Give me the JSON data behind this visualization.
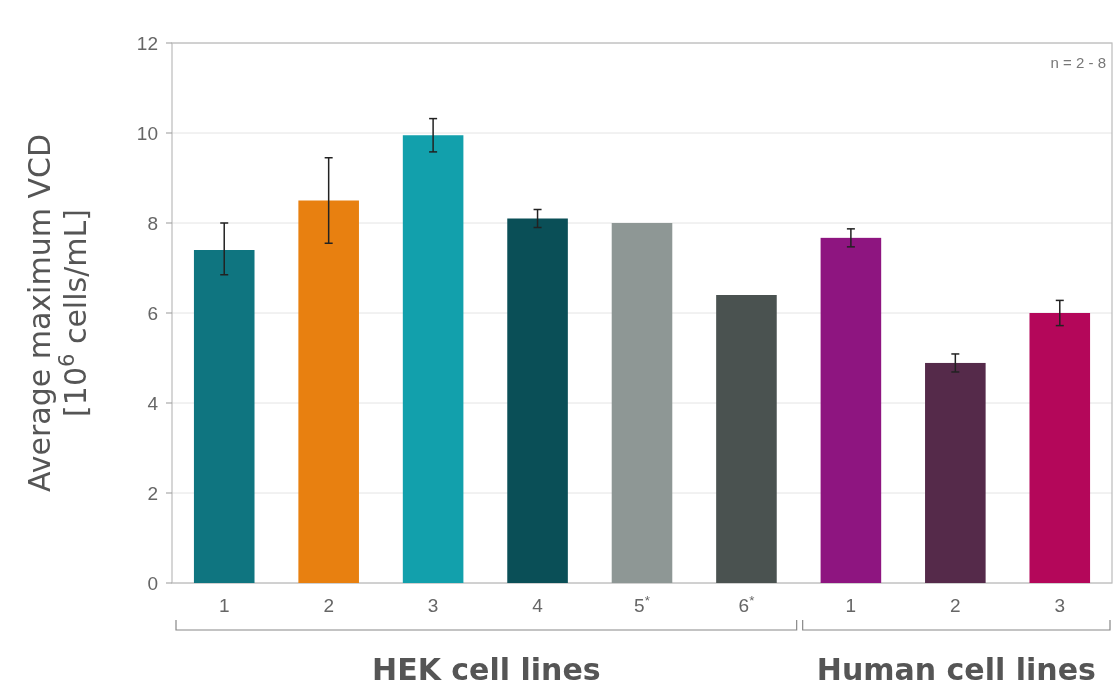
{
  "chart_data": {
    "type": "bar",
    "ylabel": "Average maximum VCD\n[10$^{6}$ cells/mL]",
    "categories": [
      "1",
      "2",
      "3",
      "4",
      "5$^{*}$",
      "6$^{*}$",
      "1",
      "2",
      "3"
    ],
    "values": [
      7.4,
      8.5,
      9.95,
      8.1,
      8.0,
      6.4,
      7.67,
      4.89,
      6.0
    ],
    "errors": [
      [
        6.85,
        8.0
      ],
      0.95,
      0.37,
      0.2,
      null,
      null,
      0.2,
      0.2,
      0.28
    ],
    "colors": [
      "#0f7580",
      "#e88010",
      "#12a0ac",
      "#0a4f57",
      "#8e9795",
      "#4a5250",
      "#8e1580",
      "#552a4a",
      "#b4075a"
    ],
    "ylim": [
      0,
      12
    ],
    "yticks": [
      0,
      2,
      4,
      6,
      8,
      10,
      12
    ],
    "grid": "y",
    "annotations": [
      "HEK cell lines",
      "Human cell lines",
      "n = 2 - 8"
    ]
  }
}
